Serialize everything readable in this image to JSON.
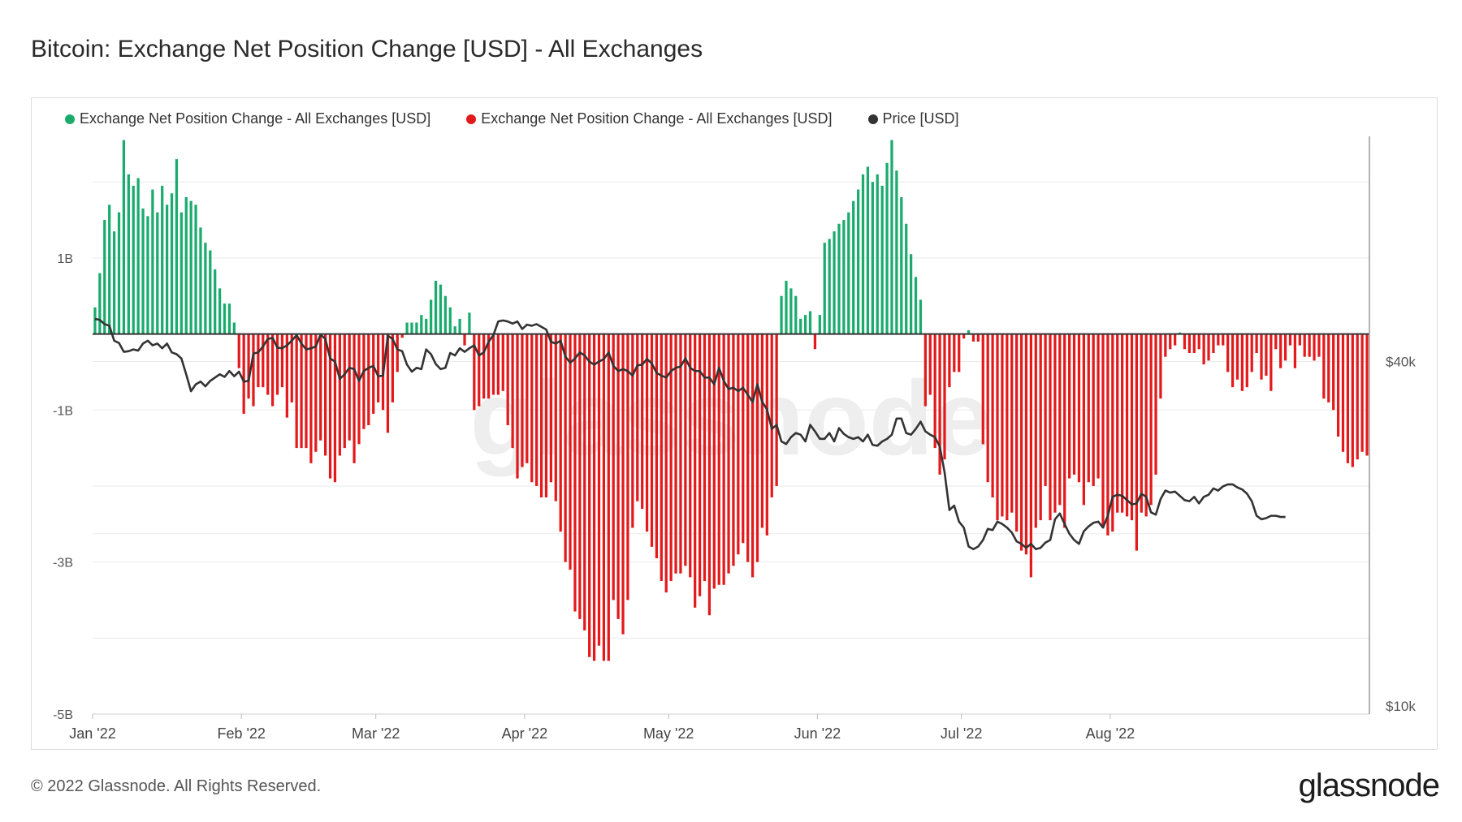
{
  "title": "Bitcoin: Exchange Net Position Change [USD] - All Exchanges",
  "footer": {
    "copyright": "© 2022 Glassnode. All Rights Reserved.",
    "logo": "glassnode"
  },
  "watermark": "glassnode",
  "legend": [
    {
      "label": "Exchange Net Position Change - All Exchanges [USD]",
      "color": "#1aab6d"
    },
    {
      "label": "Exchange Net Position Change - All Exchanges [USD]",
      "color": "#e31a1c"
    },
    {
      "label": "Price [USD]",
      "color": "#333333"
    }
  ],
  "chart_data": {
    "type": "bar",
    "title": "Bitcoin: Exchange Net Position Change [USD] - All Exchanges",
    "x_tick_labels": [
      "Jan '22",
      "Feb '22",
      "Mar '22",
      "Apr '22",
      "May '22",
      "Jun '22",
      "Jul '22",
      "Aug '22"
    ],
    "y_left_tick_labels": [
      "1B",
      "-1B",
      "-3B",
      "-5B"
    ],
    "y_left_tick_values": [
      1,
      -1,
      -3,
      -5
    ],
    "y_left_range": [
      -5,
      2.6
    ],
    "y_right_tick_labels": [
      "$40k",
      "$10k"
    ],
    "y_right_scale": "log",
    "grid": true,
    "legend_position": "top-left",
    "positive_color": "#1aab6d",
    "negative_color": "#e31a1c",
    "price_color": "#333333",
    "series": [
      {
        "name": "Exchange Net Position Change - All Exchanges [USD]",
        "unit": "billion USD",
        "start": "2022-01-01",
        "values": [
          0.35,
          0.8,
          1.5,
          1.7,
          1.35,
          1.6,
          2.55,
          2.1,
          1.95,
          2.05,
          1.65,
          1.55,
          1.9,
          1.6,
          1.95,
          1.7,
          1.85,
          2.3,
          1.6,
          1.8,
          1.75,
          1.7,
          1.4,
          1.2,
          1.1,
          0.85,
          0.6,
          0.4,
          0.4,
          0.15,
          -0.45,
          -1.05,
          -0.85,
          -0.95,
          -0.7,
          -0.7,
          -0.8,
          -0.95,
          -0.8,
          -0.7,
          -1.1,
          -0.9,
          -1.5,
          -1.5,
          -1.5,
          -1.7,
          -1.55,
          -1.4,
          -1.6,
          -1.9,
          -1.95,
          -1.6,
          -1.5,
          -1.4,
          -1.7,
          -1.45,
          -1.25,
          -1.2,
          -1.05,
          -0.9,
          -1.0,
          -1.3,
          -0.9,
          -0.5,
          -0.05,
          0.15,
          0.15,
          0.15,
          0.25,
          0.2,
          0.45,
          0.7,
          0.65,
          0.5,
          0.35,
          0.1,
          0.2,
          -0.15,
          0.28,
          -1.0,
          -0.95,
          -0.85,
          -0.85,
          -0.8,
          -0.8,
          -0.75,
          -1.2,
          -1.5,
          -1.9,
          -1.75,
          -1.7,
          -1.95,
          -2.0,
          -2.15,
          -2.15,
          -1.95,
          -2.2,
          -2.6,
          -3.0,
          -3.1,
          -3.65,
          -3.75,
          -3.9,
          -4.25,
          -4.3,
          -4.1,
          -4.3,
          -4.3,
          -3.5,
          -3.75,
          -3.95,
          -3.5,
          -2.55,
          -2.2,
          -2.3,
          -2.6,
          -2.8,
          -2.95,
          -3.25,
          -3.4,
          -3.25,
          -3.15,
          -3.15,
          -3.05,
          -3.2,
          -3.6,
          -3.45,
          -3.25,
          -3.7,
          -3.35,
          -3.3,
          -3.3,
          -3.15,
          -3.05,
          -2.9,
          -2.75,
          -3.0,
          -3.2,
          -3.0,
          -2.55,
          -2.65,
          -2.15,
          -2.0,
          0.5,
          0.7,
          0.6,
          0.5,
          0.2,
          0.25,
          0.3,
          -0.2,
          0.25,
          1.2,
          1.25,
          1.35,
          1.45,
          1.5,
          1.6,
          1.75,
          1.9,
          2.1,
          2.2,
          2.0,
          2.1,
          1.95,
          2.25,
          2.55,
          2.15,
          1.8,
          1.45,
          1.05,
          0.75,
          0.45,
          -0.95,
          -0.8,
          -1.5,
          -1.85,
          -1.65,
          -0.7,
          -0.5,
          -0.5,
          -0.06,
          0.05,
          -0.1,
          -0.1,
          -1.45,
          -1.95,
          -2.15,
          -2.45,
          -2.4,
          -2.45,
          -2.35,
          -2.6,
          -2.85,
          -2.9,
          -3.2,
          -2.55,
          -2.45,
          -2.0,
          -2.45,
          -2.35,
          -2.25,
          -2.55,
          -1.9,
          -1.85,
          -1.95,
          -2.25,
          -1.95,
          -2.0,
          -1.9,
          -2.55,
          -2.65,
          -2.6,
          -2.35,
          -2.35,
          -2.4,
          -2.45,
          -2.85,
          -2.35,
          -2.4,
          -2.25,
          -1.85,
          -0.85,
          -0.3,
          -0.2,
          -0.15,
          0.02,
          -0.2,
          -0.25,
          -0.25,
          -0.2,
          -0.4,
          -0.35,
          -0.25,
          -0.15,
          -0.15,
          -0.5,
          -0.7,
          -0.6,
          -0.75,
          -0.7,
          -0.5,
          -0.25,
          -0.6,
          -0.55,
          -0.75,
          -0.2,
          -0.45,
          -0.35,
          -0.15,
          -0.45,
          -0.15,
          -0.3,
          -0.3,
          -0.35,
          -0.3,
          -0.85,
          -0.9,
          -1.0,
          -1.35,
          -1.55,
          -1.7,
          -1.75,
          -1.65,
          -1.55,
          -1.6
        ]
      },
      {
        "name": "Price [USD]",
        "unit": "thousand USD",
        "start": "2022-01-01",
        "values": [
          47.5,
          47.3,
          46.5,
          46.2,
          43.5,
          43.1,
          41.6,
          41.7,
          42.0,
          41.8,
          43.0,
          43.5,
          42.7,
          43.0,
          42.2,
          43.0,
          41.5,
          41.2,
          40.5,
          38.0,
          35.5,
          36.5,
          36.9,
          36.2,
          37.0,
          37.5,
          38.0,
          37.6,
          38.5,
          37.7,
          38.4,
          36.9,
          37.0,
          41.3,
          41.5,
          42.5,
          43.8,
          44.0,
          42.3,
          42.2,
          42.7,
          43.5,
          44.5,
          43.0,
          42.0,
          42.2,
          42.5,
          44.6,
          43.8,
          40.5,
          40.0,
          37.3,
          38.0,
          39.0,
          38.8,
          37.0,
          38.5,
          39.0,
          39.3,
          37.7,
          37.8,
          44.4,
          43.8,
          42.0,
          41.7,
          39.5,
          38.4,
          39.0,
          38.8,
          42.0,
          41.2,
          39.6,
          38.8,
          39.0,
          41.4,
          41.0,
          42.2,
          41.6,
          42.2,
          42.7,
          41.0,
          41.5,
          43.3,
          44.5,
          47.0,
          47.2,
          47.0,
          46.6,
          47.0,
          45.6,
          46.4,
          46.2,
          46.5,
          46.0,
          45.5,
          43.3,
          43.0,
          43.5,
          40.8,
          39.8,
          40.5,
          41.5,
          41.0,
          40.0,
          39.5,
          40.0,
          40.4,
          41.5,
          39.3,
          38.5,
          38.8,
          38.5,
          37.8,
          39.4,
          39.5,
          40.4,
          39.7,
          38.2,
          37.8,
          37.5,
          38.5,
          39.0,
          39.2,
          40.5,
          39.0,
          38.5,
          38.5,
          37.5,
          37.5,
          36.5,
          39.0,
          37.0,
          35.8,
          36.0,
          35.5,
          36.0,
          35.0,
          34.0,
          36.5,
          34.0,
          33.0,
          30.5,
          31.0,
          29.0,
          28.7,
          29.5,
          30.0,
          29.8,
          29.0,
          31.0,
          30.2,
          29.3,
          29.3,
          30.0,
          29.0,
          30.6,
          29.9,
          29.5,
          29.3,
          29.5,
          29.0,
          29.8,
          28.6,
          28.5,
          29.0,
          29.3,
          29.8,
          31.8,
          31.8,
          30.0,
          29.8,
          30.5,
          31.4,
          30.2,
          29.8,
          29.5,
          28.4,
          25.6,
          22.0,
          22.4,
          21.0,
          20.5,
          19.0,
          18.8,
          19.0,
          19.5,
          20.4,
          20.3,
          21.0,
          20.8,
          20.5,
          20.1,
          19.4,
          19.2,
          18.9,
          19.2,
          18.8,
          18.9,
          19.3,
          19.5,
          21.2,
          21.7,
          20.8,
          20.0,
          19.5,
          19.2,
          20.2,
          20.6,
          20.9,
          21.0,
          20.5,
          21.5,
          23.2,
          23.4,
          23.3,
          22.9,
          22.5,
          22.6,
          23.5,
          23.2,
          21.8,
          21.6,
          23.0,
          23.8,
          23.6,
          23.7,
          23.3,
          22.9,
          22.8,
          23.2,
          22.6,
          23.2,
          23.4,
          24.0,
          23.8,
          24.2,
          24.4,
          24.4,
          24.1,
          23.9,
          23.5,
          22.8,
          21.5,
          21.2,
          21.3,
          21.5,
          21.5,
          21.4,
          21.4
        ]
      }
    ]
  }
}
